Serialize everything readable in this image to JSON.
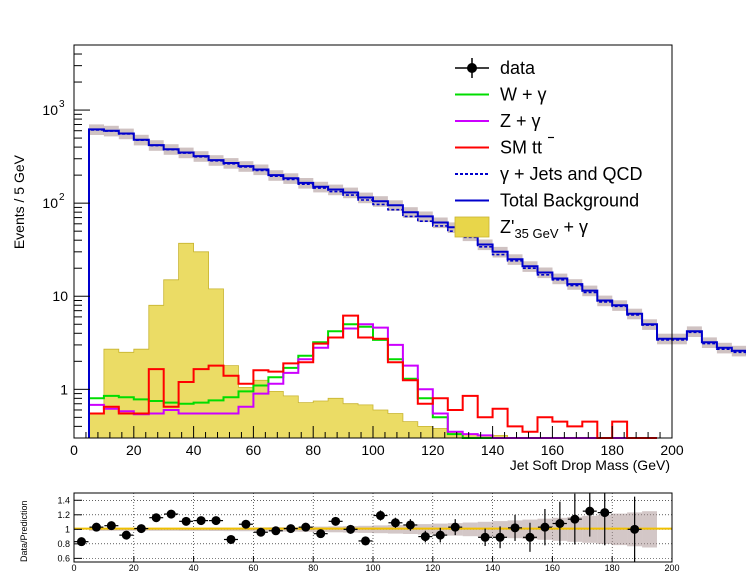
{
  "chart_data": [
    {
      "type": "histogram",
      "xlabel": "Jet Soft Drop Mass (GeV)",
      "ylabel": "Events / 5 GeV",
      "xlim": [
        0,
        200
      ],
      "ylim": [
        0.3,
        5000
      ],
      "yscale": "log",
      "x_ticks": [
        "0",
        "20",
        "40",
        "60",
        "80",
        "100",
        "120",
        "140",
        "160",
        "180",
        "200"
      ],
      "y_ticks": [
        {
          "value": 1,
          "label": "1"
        },
        {
          "value": 10,
          "label": "10"
        },
        {
          "value": 100,
          "base": "10",
          "exp": "2"
        },
        {
          "value": 1000,
          "base": "10",
          "exp": "3"
        }
      ],
      "bin_width": 5,
      "legend": {
        "position": "top-right",
        "entries": [
          {
            "key": "data",
            "label": "data",
            "color": "#000000",
            "style": "marker"
          },
          {
            "key": "wgamma",
            "label": "W + γ",
            "color": "#00dd00",
            "style": "line"
          },
          {
            "key": "zgamma",
            "label": "Z + γ",
            "color": "#cc00ff",
            "style": "line"
          },
          {
            "key": "ttbar",
            "label": "SM tt",
            "color": "#ff0000",
            "style": "line"
          },
          {
            "key": "gjets",
            "label": "γ + Jets and QCD",
            "color": "#0000cc",
            "style": "dashed"
          },
          {
            "key": "total",
            "label": "Total Background",
            "color": "#0000cc",
            "style": "line"
          },
          {
            "key": "signal",
            "label_main": "Z'",
            "label_sub": "35 GeV",
            "label_tail": " + γ",
            "color": "#e8d64a",
            "style": "fill"
          }
        ]
      },
      "series": [
        {
          "key": "total",
          "name": "Total Background",
          "x_start": 5,
          "values": [
            620,
            600,
            560,
            480,
            420,
            380,
            350,
            320,
            290,
            270,
            250,
            230,
            200,
            185,
            165,
            150,
            140,
            130,
            115,
            105,
            95,
            80,
            72,
            62,
            55,
            45,
            36,
            30,
            25,
            21,
            18,
            15.5,
            13.5,
            11.5,
            9,
            8,
            6.5,
            5,
            3.5,
            3.5,
            4.2,
            3.2,
            2.8,
            2.6,
            2.4,
            2.5,
            2.3,
            3.7
          ]
        },
        {
          "key": "gjets",
          "name": "γ + Jets and QCD",
          "x_start": 5,
          "values": [
            610,
            595,
            555,
            475,
            415,
            375,
            345,
            315,
            285,
            265,
            245,
            225,
            195,
            180,
            160,
            145,
            133,
            122,
            108,
            97,
            85,
            72,
            64,
            57,
            50,
            43,
            34,
            28,
            24,
            20,
            17,
            15,
            13,
            11,
            8.7,
            7.8,
            6.3,
            4.9,
            3.4,
            3.4,
            4.1,
            3.1,
            2.7,
            2.5,
            2.35,
            2.45,
            2.25,
            3.6
          ]
        },
        {
          "key": "wgamma",
          "name": "W + γ",
          "x_start": 5,
          "values": [
            0.8,
            0.85,
            0.82,
            0.78,
            0.75,
            0.72,
            0.7,
            0.72,
            0.76,
            0.82,
            0.95,
            1.1,
            1.35,
            1.7,
            2.3,
            3.2,
            4.2,
            5,
            4.7,
            3.4,
            2.1,
            1.3,
            0.8,
            0.5,
            0.33,
            0.3,
            0.3,
            0.3,
            0.3,
            0.3,
            0.3,
            0.3,
            0.3,
            0.3,
            0.3,
            0.3,
            0.3,
            0.3
          ]
        },
        {
          "key": "zgamma",
          "name": "Z + γ",
          "x_start": 5,
          "values": [
            0.68,
            0.62,
            0.58,
            0.54,
            0.55,
            0.6,
            0.55,
            0.55,
            0.55,
            0.55,
            0.65,
            0.9,
            1.15,
            1.5,
            2.1,
            2.8,
            3.6,
            4.5,
            5,
            4.6,
            3,
            1.8,
            1,
            0.55,
            0.35,
            0.33,
            0.32,
            0.3,
            0.3,
            0.3,
            0.3,
            0.3,
            0.3,
            0.3,
            0.3,
            0.3,
            0.3,
            0.3
          ]
        },
        {
          "key": "ttbar",
          "name": "SM tt",
          "x_start": 5,
          "values": [
            0.55,
            0.65,
            0.55,
            0.55,
            1.65,
            0.65,
            1.2,
            1.65,
            1.8,
            1.4,
            1.15,
            1.6,
            1.55,
            1.9,
            1.95,
            3.1,
            3.6,
            6.2,
            3.6,
            3.5,
            1.95,
            1.25,
            0.7,
            0.8,
            0.6,
            0.85,
            0.5,
            0.62,
            0.4,
            0.35,
            0.5,
            0.45,
            0.4,
            0.45,
            0.3,
            0.45,
            0.3,
            0.3
          ]
        },
        {
          "key": "signal",
          "name": "Z'35 GeV + γ",
          "x_start": 5,
          "values": [
            0.55,
            2.7,
            2.5,
            2.7,
            8,
            15,
            37,
            30,
            12,
            1.8,
            1.05,
            1.25,
            0.95,
            0.85,
            0.72,
            0.75,
            0.8,
            0.7,
            0.68,
            0.6,
            0.55,
            0.45,
            0.4,
            0.38,
            0.35,
            0.33,
            0.32,
            0.32,
            0.3,
            0.3,
            0.3,
            0.3,
            0.3,
            0.3,
            0.3
          ]
        }
      ],
      "error_band": {
        "relative": 0.13
      }
    },
    {
      "type": "scatter",
      "xlim": [
        0,
        200
      ],
      "ylim": [
        0.55,
        1.5
      ],
      "ylabel": "Data/Prediction",
      "x_ticks": [
        "0",
        "20",
        "40",
        "60",
        "80",
        "100",
        "120",
        "140",
        "160",
        "180",
        "200"
      ],
      "y_ticks": [
        "0.6",
        "0.8",
        "1",
        "1.2",
        "1.4"
      ],
      "band_color": "#f0c000",
      "points": {
        "x": [
          2.5,
          7.5,
          12.5,
          17.5,
          22.5,
          27.5,
          32.5,
          37.5,
          42.5,
          47.5,
          52.5,
          57.5,
          62.5,
          67.5,
          72.5,
          77.5,
          82.5,
          87.5,
          92.5,
          97.5,
          102.5,
          107.5,
          112.5,
          117.5,
          122.5,
          127.5,
          137.5,
          142.5,
          147.5,
          152.5,
          157.5,
          162.5,
          167.5,
          172.5,
          177.5,
          187.5
        ],
        "y": [
          0.83,
          1.03,
          1.05,
          0.92,
          1.01,
          1.16,
          1.21,
          1.11,
          1.12,
          1.12,
          0.86,
          1.07,
          0.96,
          0.98,
          1.01,
          1.03,
          0.94,
          1.11,
          1.0,
          0.84,
          1.19,
          1.09,
          1.06,
          0.9,
          0.92,
          1.03,
          0.89,
          0.89,
          1.02,
          0.89,
          1.03,
          1.08,
          1.14,
          1.25,
          1.23,
          1.0
        ],
        "err": [
          0.04,
          0.04,
          0.04,
          0.04,
          0.04,
          0.04,
          0.04,
          0.04,
          0.04,
          0.04,
          0.05,
          0.05,
          0.05,
          0.05,
          0.05,
          0.05,
          0.05,
          0.05,
          0.06,
          0.06,
          0.07,
          0.07,
          0.08,
          0.08,
          0.1,
          0.11,
          0.12,
          0.15,
          0.18,
          0.2,
          0.25,
          0.3,
          0.35,
          0.35,
          0.45,
          0.45
        ]
      }
    }
  ]
}
